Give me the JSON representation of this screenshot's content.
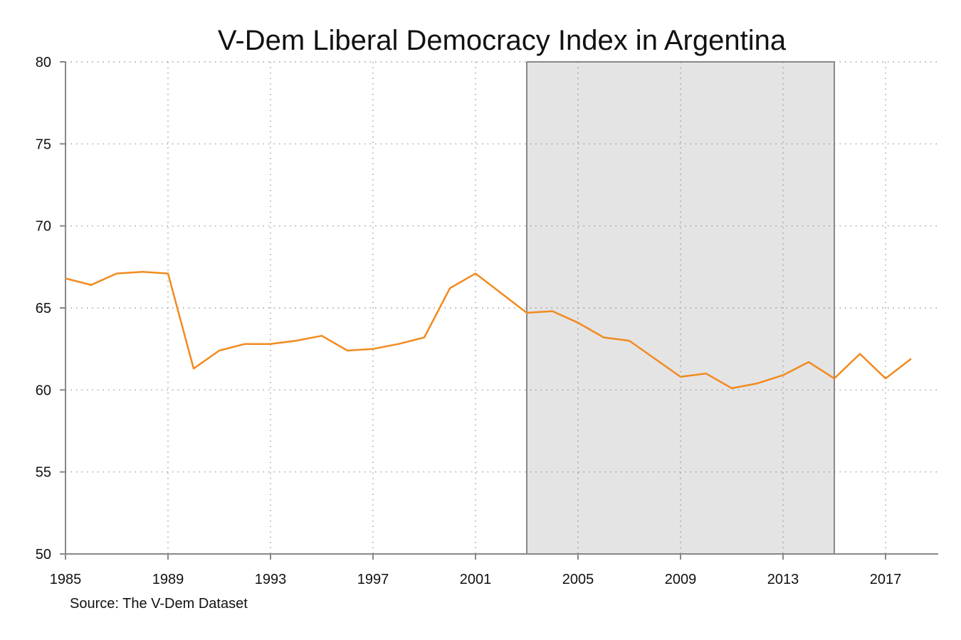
{
  "chart_data": {
    "type": "line",
    "title": "V-Dem Liberal Democracy Index in Argentina",
    "xlabel": "",
    "ylabel": "",
    "source": "Source: The V-Dem Dataset",
    "xlim": [
      1985,
      2019
    ],
    "ylim": [
      50,
      80
    ],
    "x_ticks": [
      "1985",
      "1989",
      "1993",
      "1997",
      "2001",
      "2005",
      "2009",
      "2013",
      "2017"
    ],
    "y_ticks": [
      "50",
      "55",
      "60",
      "65",
      "70",
      "75",
      "80"
    ],
    "grid": true,
    "shaded_region": {
      "x_start": 2003,
      "x_end": 2015,
      "color": "#e4e4e4"
    },
    "series": [
      {
        "color": "#f28a1f",
        "x": [
          1985,
          1986,
          1987,
          1988,
          1989,
          1990,
          1991,
          1992,
          1993,
          1994,
          1995,
          1996,
          1997,
          1998,
          1999,
          2000,
          2001,
          2002,
          2003,
          2004,
          2005,
          2006,
          2007,
          2008,
          2009,
          2010,
          2011,
          2012,
          2013,
          2014,
          2015,
          2016,
          2017,
          2018
        ],
        "values": [
          66.8,
          66.4,
          67.1,
          67.2,
          67.1,
          61.3,
          62.4,
          62.8,
          62.8,
          63.0,
          63.3,
          62.4,
          62.5,
          62.8,
          63.2,
          66.2,
          67.1,
          65.9,
          64.7,
          64.8,
          64.1,
          63.2,
          63.0,
          61.9,
          60.8,
          61.0,
          60.1,
          60.4,
          60.9,
          61.7,
          60.7,
          62.2,
          60.7,
          61.9
        ]
      }
    ]
  }
}
